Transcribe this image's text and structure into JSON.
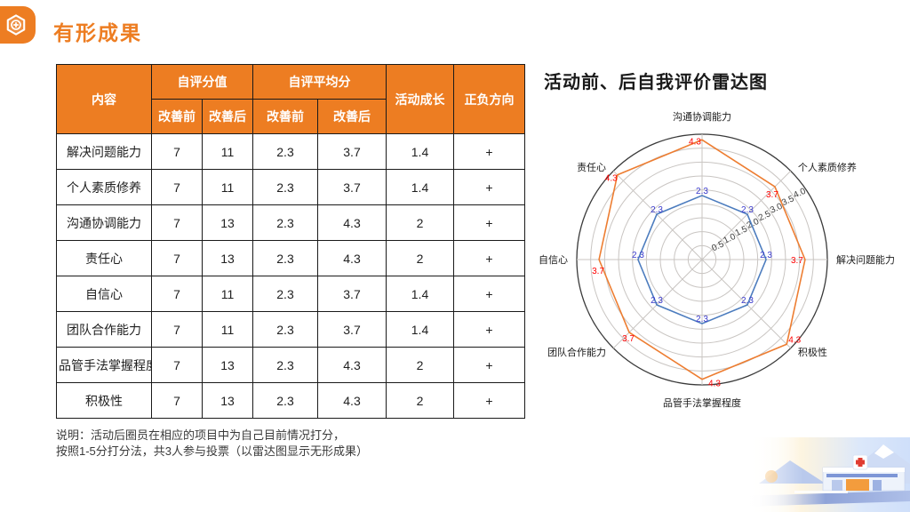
{
  "header": {
    "title": "有形成果",
    "icon": "hexagon-plus-icon",
    "accent_color": "#ED7D22"
  },
  "table": {
    "header": {
      "content": "内容",
      "score_group": "自评分值",
      "avg_group": "自评平均分",
      "before": "改善前",
      "after": "改善后",
      "growth": "活动成长",
      "direction": "正负方向"
    },
    "rows": [
      {
        "name": "解决问题能力",
        "score_before": "7",
        "score_after": "11",
        "avg_before": "2.3",
        "avg_after": "3.7",
        "growth": "1.4",
        "direction": "+"
      },
      {
        "name": "个人素质修养",
        "score_before": "7",
        "score_after": "11",
        "avg_before": "2.3",
        "avg_after": "3.7",
        "growth": "1.4",
        "direction": "+"
      },
      {
        "name": "沟通协调能力",
        "score_before": "7",
        "score_after": "13",
        "avg_before": "2.3",
        "avg_after": "4.3",
        "growth": "2",
        "direction": "+"
      },
      {
        "name": "责任心",
        "score_before": "7",
        "score_after": "13",
        "avg_before": "2.3",
        "avg_after": "4.3",
        "growth": "2",
        "direction": "+"
      },
      {
        "name": "自信心",
        "score_before": "7",
        "score_after": "11",
        "avg_before": "2.3",
        "avg_after": "3.7",
        "growth": "1.4",
        "direction": "+"
      },
      {
        "name": "团队合作能力",
        "score_before": "7",
        "score_after": "11",
        "avg_before": "2.3",
        "avg_after": "3.7",
        "growth": "1.4",
        "direction": "+"
      },
      {
        "name": "品管手法掌握程度",
        "score_before": "7",
        "score_after": "13",
        "avg_before": "2.3",
        "avg_after": "4.3",
        "growth": "2",
        "direction": "+"
      },
      {
        "name": "积极性",
        "score_before": "7",
        "score_after": "13",
        "avg_before": "2.3",
        "avg_after": "4.3",
        "growth": "2",
        "direction": "+"
      }
    ]
  },
  "note": {
    "line1": "说明：活动后圈员在相应的项目中为自己目前情况打分，",
    "line2": "按照1-5分打分法，共3人参与投票（以雷达图显示无形成果）"
  },
  "radar": {
    "title": "活动前、后自我评价雷达图"
  },
  "decor": {
    "illustration": "hospital-building-illustration"
  },
  "chart_data": {
    "type": "radar",
    "title": "活动前、后自我评价雷达图",
    "categories": [
      "沟通协调能力",
      "个人素质修养",
      "解决问题能力",
      "积极性",
      "品管手法掌握程度",
      "团队合作能力",
      "自信心",
      "责任心"
    ],
    "series": [
      {
        "name": "改善前",
        "color": "#4C7CBE",
        "label_color": "#3A3ACC",
        "values": [
          2.3,
          2.3,
          2.3,
          2.3,
          2.3,
          2.3,
          2.3,
          2.3
        ]
      },
      {
        "name": "改善后",
        "color": "#ED7D31",
        "label_color": "#FF0000",
        "values": [
          4.3,
          3.7,
          3.7,
          4.3,
          4.3,
          3.7,
          3.7,
          4.3
        ]
      }
    ],
    "rmin": 0,
    "rmax": 4.5,
    "rstep": 0.5,
    "tick_labels": [
      "0.5",
      "1.0",
      "1.5",
      "2.0",
      "2.5",
      "3.0",
      "3.5",
      "4.0"
    ],
    "start_angle_deg": 90,
    "direction": "clockwise",
    "grid": true,
    "grid_color": "#C9C5C2",
    "outer_ring_color": "#3A3A3A",
    "legend": "none"
  }
}
